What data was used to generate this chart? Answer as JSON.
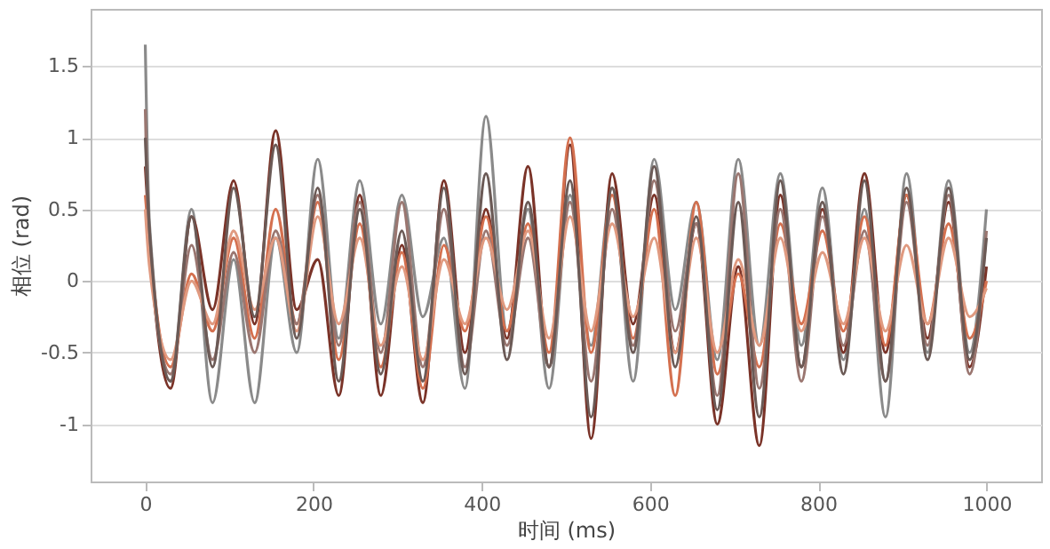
{
  "chart_data": {
    "type": "line",
    "xlabel": "时间 (ms)",
    "ylabel": "相位 (rad)",
    "x": [
      0,
      5,
      30,
      55,
      80,
      105,
      130,
      155,
      180,
      205,
      230,
      255,
      280,
      305,
      330,
      355,
      380,
      405,
      430,
      455,
      480,
      505,
      530,
      555,
      580,
      605,
      630,
      655,
      680,
      705,
      730,
      755,
      780,
      805,
      830,
      855,
      880,
      905,
      930,
      955,
      980,
      1000
    ],
    "xlim": [
      -65,
      1065
    ],
    "xticks": [
      0,
      200,
      400,
      600,
      800,
      1000
    ],
    "ylim": [
      -1.4,
      1.9
    ],
    "yticks": [
      -1,
      -0.5,
      0,
      0.5,
      1,
      1.5
    ],
    "grid": "y",
    "legend": false,
    "marker": "none",
    "line_style": "solid",
    "series": [
      {
        "color": "#8a8a8a",
        "values": [
          1.65,
          0.4,
          -0.7,
          0.5,
          -0.85,
          0.15,
          -0.85,
          0.3,
          -0.5,
          0.85,
          -0.4,
          0.7,
          -0.3,
          0.6,
          -0.25,
          0.3,
          -0.75,
          1.15,
          -0.35,
          0.5,
          -0.75,
          0.6,
          -0.45,
          0.65,
          -0.7,
          0.85,
          -0.2,
          0.55,
          -0.55,
          0.85,
          -0.45,
          0.75,
          -0.45,
          0.65,
          -0.55,
          0.5,
          -0.95,
          0.75,
          -0.5,
          0.7,
          -0.5,
          0.5
        ]
      },
      {
        "color": "#7a3328",
        "values": [
          0.8,
          0.3,
          -0.75,
          0.45,
          -0.2,
          0.7,
          -0.3,
          1.05,
          -0.2,
          0.15,
          -0.8,
          0.6,
          -0.8,
          0.25,
          -0.85,
          0.7,
          -0.5,
          0.5,
          -0.4,
          0.8,
          -0.6,
          0.95,
          -1.1,
          0.75,
          -0.3,
          0.6,
          -0.5,
          0.4,
          -1.0,
          0.1,
          -1.15,
          0.6,
          -0.6,
          0.5,
          -0.5,
          0.75,
          -0.5,
          0.6,
          -0.4,
          0.55,
          -0.6,
          0.1
        ]
      },
      {
        "color": "#d4704f",
        "values": [
          0.6,
          0.25,
          -0.6,
          0.05,
          -0.35,
          0.3,
          -0.4,
          0.5,
          -0.3,
          0.55,
          -0.55,
          0.4,
          -0.6,
          0.2,
          -0.75,
          0.25,
          -0.35,
          0.45,
          -0.35,
          0.4,
          -0.5,
          1.0,
          -0.5,
          0.6,
          -0.4,
          0.5,
          -0.8,
          0.55,
          -0.65,
          0.05,
          -0.6,
          0.4,
          -0.3,
          0.35,
          -0.35,
          0.45,
          -0.45,
          0.6,
          -0.3,
          0.4,
          -0.4,
          0.0
        ]
      },
      {
        "color": "#9a7670",
        "values": [
          1.2,
          0.2,
          -0.65,
          0.25,
          -0.55,
          0.2,
          -0.5,
          0.35,
          -0.3,
          0.6,
          -0.45,
          0.55,
          -0.5,
          0.55,
          -0.6,
          0.5,
          -0.6,
          0.35,
          -0.45,
          0.3,
          -0.6,
          0.55,
          -0.7,
          0.5,
          -0.45,
          0.7,
          -0.35,
          0.4,
          -0.8,
          0.75,
          -0.75,
          0.5,
          -0.7,
          0.45,
          -0.45,
          0.35,
          -0.7,
          0.55,
          -0.45,
          0.6,
          -0.65,
          0.35
        ]
      },
      {
        "color": "#e09a80",
        "values": [
          0.5,
          0.1,
          -0.55,
          0.0,
          -0.3,
          0.35,
          -0.2,
          0.3,
          -0.35,
          0.45,
          -0.3,
          0.3,
          -0.45,
          0.1,
          -0.55,
          0.15,
          -0.3,
          0.3,
          -0.2,
          0.35,
          -0.4,
          0.45,
          -0.35,
          0.4,
          -0.25,
          0.3,
          -0.5,
          0.3,
          -0.5,
          0.15,
          -0.45,
          0.3,
          -0.35,
          0.2,
          -0.3,
          0.3,
          -0.35,
          0.25,
          -0.3,
          0.3,
          -0.25,
          -0.05
        ]
      },
      {
        "color": "#6b5a56",
        "values": [
          1.0,
          0.35,
          -0.7,
          0.45,
          -0.6,
          0.65,
          -0.25,
          0.95,
          -0.4,
          0.65,
          -0.7,
          0.5,
          -0.65,
          0.35,
          -0.7,
          0.65,
          -0.65,
          0.75,
          -0.55,
          0.55,
          -0.6,
          0.7,
          -0.95,
          0.65,
          -0.5,
          0.8,
          -0.6,
          0.45,
          -0.9,
          0.55,
          -0.95,
          0.7,
          -0.6,
          0.55,
          -0.65,
          0.7,
          -0.7,
          0.65,
          -0.55,
          0.65,
          -0.55,
          0.3
        ]
      }
    ]
  }
}
